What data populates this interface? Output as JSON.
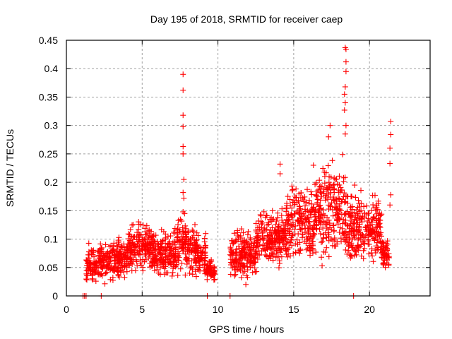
{
  "chart_data": {
    "type": "scatter",
    "title": "Day 195 of 2018, SRMTID for receiver caep",
    "xlabel": "GPS time / hours",
    "ylabel": "SRMTID / TECUs",
    "xlim": [
      0,
      24
    ],
    "ylim": [
      0,
      0.45
    ],
    "x_ticks": [
      0,
      5,
      10,
      15,
      20
    ],
    "x_tick_labels": [
      "0",
      "5",
      "10",
      "15",
      "20"
    ],
    "y_ticks": [
      0,
      0.05,
      0.1,
      0.15,
      0.2,
      0.25,
      0.3,
      0.35,
      0.4,
      0.45
    ],
    "y_tick_labels": [
      "0",
      "0.05",
      "0.1",
      "0.15",
      "0.2",
      "0.25",
      "0.3",
      "0.35",
      "0.4",
      "0.45"
    ],
    "grid": true,
    "legend": "none",
    "marker": "+",
    "color": "#ff0000",
    "series": [
      {
        "name": "SRMTID",
        "note": "dense cloud of points; envelope segments give typical level (center) and spread by hour",
        "envelope": [
          {
            "x_start": 1.3,
            "x_end": 2.0,
            "center": 0.055,
            "spread": 0.025
          },
          {
            "x_start": 2.0,
            "x_end": 4.0,
            "center": 0.065,
            "spread": 0.025
          },
          {
            "x_start": 4.0,
            "x_end": 5.5,
            "center": 0.085,
            "spread": 0.03
          },
          {
            "x_start": 5.5,
            "x_end": 7.3,
            "center": 0.075,
            "spread": 0.03
          },
          {
            "x_start": 7.3,
            "x_end": 8.5,
            "center": 0.09,
            "spread": 0.035
          },
          {
            "x_start": 8.5,
            "x_end": 9.2,
            "center": 0.07,
            "spread": 0.025
          },
          {
            "x_start": 9.2,
            "x_end": 9.8,
            "center": 0.045,
            "spread": 0.015
          },
          {
            "x_start": 10.8,
            "x_end": 12.5,
            "center": 0.075,
            "spread": 0.03
          },
          {
            "x_start": 12.5,
            "x_end": 14.5,
            "center": 0.1,
            "spread": 0.035
          },
          {
            "x_start": 14.5,
            "x_end": 16.5,
            "center": 0.13,
            "spread": 0.05
          },
          {
            "x_start": 16.5,
            "x_end": 18.5,
            "center": 0.15,
            "spread": 0.06
          },
          {
            "x_start": 18.5,
            "x_end": 20.0,
            "center": 0.12,
            "spread": 0.05
          },
          {
            "x_start": 20.0,
            "x_end": 20.8,
            "center": 0.12,
            "spread": 0.04
          },
          {
            "x_start": 20.8,
            "x_end": 21.3,
            "center": 0.075,
            "spread": 0.02
          }
        ],
        "outliers": [
          [
            7.7,
            0.39
          ],
          [
            7.7,
            0.362
          ],
          [
            7.7,
            0.318
          ],
          [
            7.7,
            0.298
          ],
          [
            7.7,
            0.263
          ],
          [
            7.7,
            0.25
          ],
          [
            7.75,
            0.205
          ],
          [
            7.7,
            0.182
          ],
          [
            7.75,
            0.172
          ],
          [
            7.7,
            0.148
          ],
          [
            7.8,
            0.145
          ],
          [
            18.4,
            0.437
          ],
          [
            18.45,
            0.434
          ],
          [
            18.45,
            0.412
          ],
          [
            18.45,
            0.395
          ],
          [
            18.4,
            0.368
          ],
          [
            18.35,
            0.355
          ],
          [
            18.4,
            0.34
          ],
          [
            18.35,
            0.327
          ],
          [
            18.45,
            0.3
          ],
          [
            18.4,
            0.285
          ],
          [
            21.4,
            0.307
          ],
          [
            21.4,
            0.284
          ],
          [
            21.35,
            0.26
          ],
          [
            21.35,
            0.233
          ],
          [
            21.4,
            0.178
          ],
          [
            21.35,
            0.16
          ],
          [
            14.1,
            0.232
          ],
          [
            14.1,
            0.215
          ],
          [
            16.3,
            0.23
          ],
          [
            17.3,
            0.28
          ],
          [
            17.4,
            0.3
          ],
          [
            1.1,
            0.0
          ],
          [
            1.2,
            0.0
          ],
          [
            1.3,
            0.0
          ],
          [
            2.3,
            0.0
          ],
          [
            9.3,
            0.0
          ],
          [
            10.8,
            0.0
          ],
          [
            18.95,
            0.0
          ]
        ]
      }
    ]
  }
}
